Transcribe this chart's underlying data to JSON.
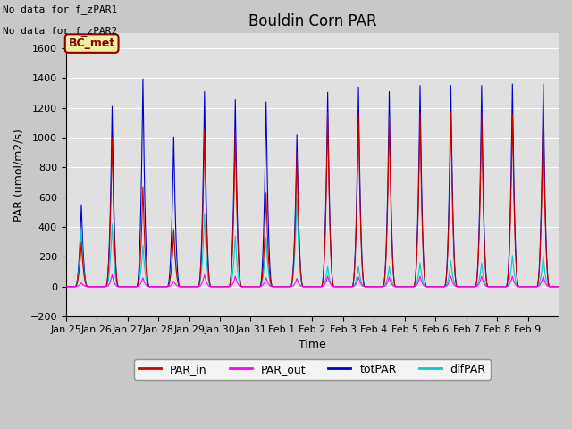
{
  "title": "Bouldin Corn PAR",
  "ylabel": "PAR (umol/m2/s)",
  "xlabel": "Time",
  "ylim": [
    -200,
    1700
  ],
  "yticks": [
    -200,
    0,
    200,
    400,
    600,
    800,
    1000,
    1200,
    1400,
    1600
  ],
  "text_no_data1": "No data for f_zPAR1",
  "text_no_data2": "No data for f_zPAR2",
  "bc_met_label": "BC_met",
  "legend_entries": [
    "PAR_in",
    "PAR_out",
    "totPAR",
    "difPAR"
  ],
  "line_colors": {
    "PAR_in": "#cc0000",
    "PAR_out": "#ff00ff",
    "totPAR": "#0000cc",
    "difPAR": "#00cccc"
  },
  "fig_facecolor": "#c8c8c8",
  "ax_facecolor": "#e0e0e0",
  "grid_color": "#ffffff",
  "title_fontsize": 12,
  "axis_label_fontsize": 9,
  "tick_fontsize": 8,
  "n_days": 16,
  "totPAR_peaks": [
    550,
    1210,
    1395,
    1005,
    1310,
    1255,
    1240,
    1020,
    1305,
    1340,
    1310,
    1350,
    1350,
    1350,
    1360,
    1360
  ],
  "PAR_in_peaks": [
    300,
    1000,
    670,
    380,
    1050,
    1040,
    630,
    900,
    1170,
    1160,
    1135,
    1165,
    1170,
    1165,
    1160,
    1160
  ],
  "PAR_out_peaks": [
    25,
    80,
    60,
    35,
    80,
    70,
    60,
    55,
    70,
    65,
    65,
    70,
    70,
    70,
    70,
    70
  ],
  "difPAR_peaks": [
    390,
    420,
    280,
    390,
    490,
    340,
    330,
    600,
    135,
    135,
    135,
    160,
    175,
    160,
    210,
    210
  ],
  "tick_labels": [
    "Jan 25",
    "Jan 26",
    "Jan 27",
    "Jan 28",
    "Jan 29",
    "Jan 30",
    "Jan 31",
    "Feb 1",
    "Feb 2",
    "Feb 3",
    "Feb 4",
    "Feb 5",
    "Feb 6",
    "Feb 7",
    "Feb 8",
    "Feb 9"
  ]
}
